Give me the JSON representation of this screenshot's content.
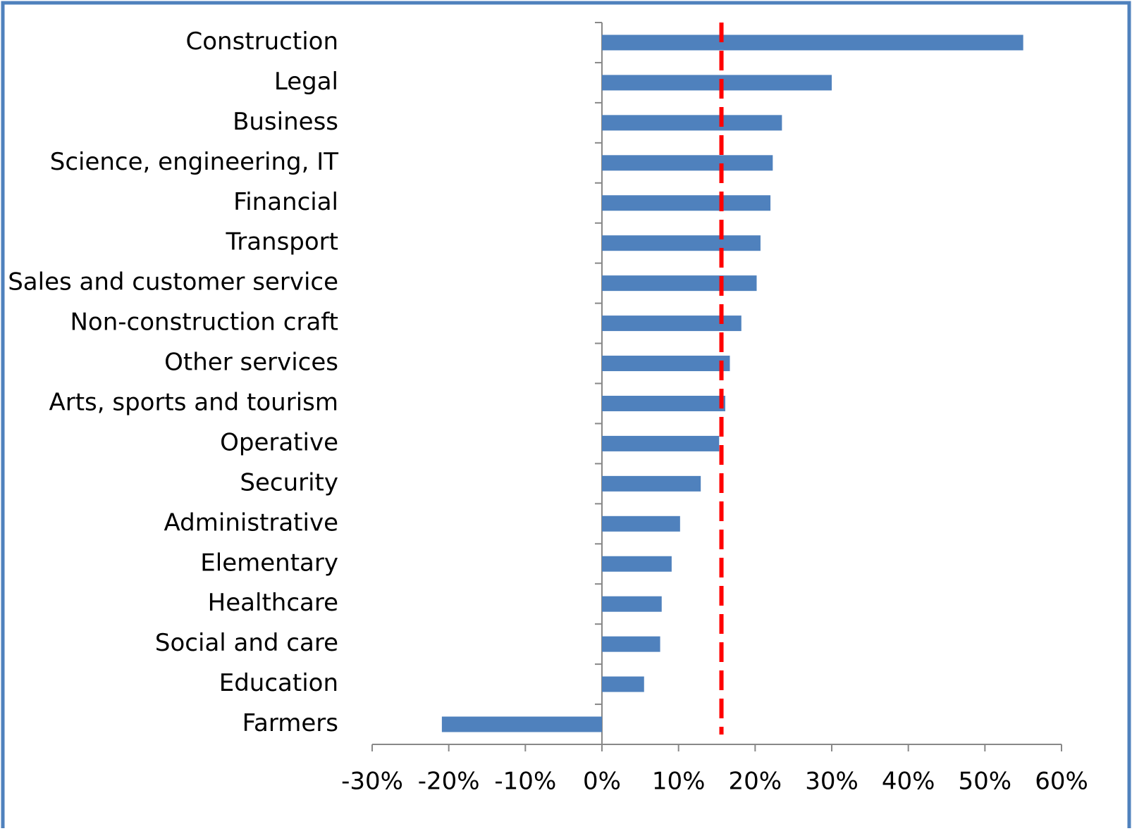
{
  "chart_data": {
    "type": "bar",
    "orientation": "horizontal",
    "categories": [
      "Construction",
      "Legal",
      "Business",
      "Science, engineering, IT",
      "Financial",
      "Transport",
      "Sales and customer service",
      "Non-construction craft",
      "Other services",
      "Arts, sports and tourism",
      "Operative",
      "Security",
      "Administrative",
      "Elementary",
      "Healthcare",
      "Social and care",
      "Education",
      "Farmers"
    ],
    "values": [
      55,
      30,
      23.5,
      22.3,
      22,
      20.7,
      20.2,
      18.2,
      16.7,
      16.1,
      15.3,
      12.9,
      10.2,
      9.1,
      7.8,
      7.6,
      5.5,
      -20.9
    ],
    "color": "#4f81bd",
    "xlim": [
      -30,
      60
    ],
    "xticks": [
      {
        "value": -30,
        "label": "-30%"
      },
      {
        "value": -20,
        "label": "-20%"
      },
      {
        "value": -10,
        "label": "-10%"
      },
      {
        "value": 0,
        "label": "0%"
      },
      {
        "value": 10,
        "label": "10%"
      },
      {
        "value": 20,
        "label": "20%"
      },
      {
        "value": 30,
        "label": "30%"
      },
      {
        "value": 40,
        "label": "40%"
      },
      {
        "value": 50,
        "label": "50%"
      },
      {
        "value": 60,
        "label": "60%"
      }
    ],
    "reference_line": {
      "value": 15.6,
      "color": "#ff0000"
    },
    "grid": false
  }
}
